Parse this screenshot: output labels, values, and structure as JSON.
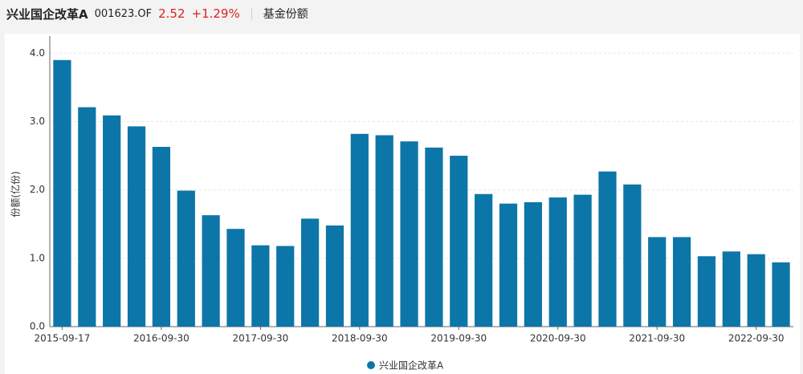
{
  "header": {
    "title": "兴业国企改革A",
    "code": "001623.OF",
    "price": "2.52",
    "change": "+1.29%",
    "tab": "基金份额"
  },
  "chart_data": {
    "type": "bar",
    "y_label": "份额(亿份)",
    "categories": [
      "2015-09-17",
      null,
      null,
      null,
      "2016-09-30",
      null,
      null,
      null,
      "2017-09-30",
      null,
      null,
      null,
      "2018-09-30",
      null,
      null,
      null,
      "2019-09-30",
      null,
      null,
      null,
      "2020-09-30",
      null,
      null,
      null,
      "2021-09-30",
      null,
      null,
      null,
      "2022-09-30",
      null
    ],
    "series": [
      {
        "name": "兴业国企改革A",
        "color": "#0d76a8",
        "values": [
          3.9,
          3.21,
          3.09,
          2.93,
          2.63,
          1.99,
          1.63,
          1.43,
          1.19,
          1.18,
          1.58,
          1.48,
          2.82,
          2.8,
          2.71,
          2.62,
          2.5,
          1.94,
          1.8,
          1.82,
          1.89,
          1.93,
          2.27,
          2.08,
          1.31,
          1.31,
          1.03,
          1.1,
          1.06,
          0.94
        ]
      }
    ],
    "ylim": [
      0,
      4.25
    ],
    "yticks": [
      {
        "value": 0,
        "label": "0.0"
      },
      {
        "value": 1,
        "label": "1.0"
      },
      {
        "value": 2,
        "label": "2.0"
      },
      {
        "value": 3,
        "label": "3.0"
      },
      {
        "value": 4,
        "label": "4.0"
      }
    ],
    "grid": true,
    "legend": "bottom"
  }
}
